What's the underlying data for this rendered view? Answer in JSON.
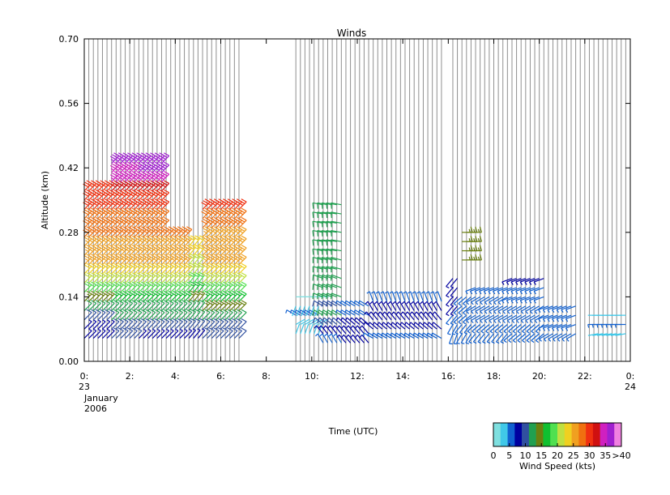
{
  "chart_data": {
    "type": "wind_barb_profile",
    "title": "Winds",
    "xlabel": "Time (UTC)",
    "ylabel": "Altitude (km)",
    "x_unit": "hour UTC",
    "xlim": [
      0,
      24
    ],
    "ylim": [
      0,
      0.7
    ],
    "y_ticks": [
      "0.00",
      "0.14",
      "0.28",
      "0.42",
      "0.56",
      "0.70"
    ],
    "x_ticks": [
      {
        "h": 0,
        "label": "0:",
        "sub": "23"
      },
      {
        "h": 2,
        "label": "2:",
        "sub": ""
      },
      {
        "h": 4,
        "label": "4:",
        "sub": ""
      },
      {
        "h": 6,
        "label": "6:",
        "sub": ""
      },
      {
        "h": 8,
        "label": "8:",
        "sub": ""
      },
      {
        "h": 10,
        "label": "10:",
        "sub": ""
      },
      {
        "h": 12,
        "label": "12:",
        "sub": ""
      },
      {
        "h": 14,
        "label": "14:",
        "sub": ""
      },
      {
        "h": 16,
        "label": "16:",
        "sub": ""
      },
      {
        "h": 18,
        "label": "18:",
        "sub": ""
      },
      {
        "h": 20,
        "label": "20:",
        "sub": ""
      },
      {
        "h": 22,
        "label": "22:",
        "sub": ""
      },
      {
        "h": 24,
        "label": "0:",
        "sub": "24"
      }
    ],
    "date_label_1": "January",
    "date_label_2": "2006",
    "grid": "vertical lines at each profile time",
    "profile_times": [
      0.0,
      0.2,
      0.4,
      0.6,
      0.8,
      1.0,
      1.2,
      1.4,
      1.6,
      1.8,
      2.0,
      2.2,
      2.4,
      2.6,
      2.8,
      3.0,
      3.2,
      3.4,
      3.6,
      3.8,
      4.0,
      4.2,
      4.4,
      4.6,
      4.8,
      5.0,
      5.2,
      5.4,
      5.6,
      5.8,
      6.0,
      6.2,
      6.4,
      6.6,
      6.8,
      9.3,
      9.5,
      9.7,
      9.9,
      10.1,
      10.3,
      10.5,
      10.7,
      10.9,
      11.1,
      11.3,
      11.5,
      11.7,
      11.9,
      12.1,
      12.3,
      12.5,
      12.7,
      12.9,
      13.1,
      13.3,
      13.5,
      13.7,
      13.9,
      14.1,
      14.3,
      14.5,
      14.7,
      14.9,
      15.1,
      15.3,
      15.5,
      15.7,
      16.2,
      16.4,
      16.6,
      16.8,
      17.0,
      17.2,
      17.4,
      17.6,
      17.8,
      18.0,
      18.2,
      18.4,
      18.6,
      18.8,
      19.0,
      19.2,
      19.4,
      19.6,
      19.8,
      20.0,
      20.2,
      20.4,
      20.6,
      20.8,
      21.0,
      21.2,
      21.4,
      21.6,
      21.8,
      22.0,
      22.2,
      22.4,
      22.6,
      22.8,
      23.0,
      23.2,
      23.4,
      23.6,
      23.8
    ],
    "profiles": [
      {
        "t0": 0.0,
        "t1": 1.0,
        "dt": 0.2,
        "levels": [
          [
            0.05,
            8,
            45
          ],
          [
            0.07,
            8,
            45
          ],
          [
            0.09,
            10,
            45
          ],
          [
            0.11,
            12,
            45
          ],
          [
            0.13,
            16,
            45
          ],
          [
            0.15,
            20,
            45
          ],
          [
            0.17,
            22,
            45
          ],
          [
            0.19,
            24,
            45
          ],
          [
            0.21,
            26,
            45
          ],
          [
            0.23,
            26,
            45
          ],
          [
            0.25,
            28,
            45
          ],
          [
            0.27,
            30,
            45
          ],
          [
            0.29,
            30,
            45
          ],
          [
            0.31,
            30,
            45
          ],
          [
            0.33,
            32,
            45
          ],
          [
            0.35,
            32,
            45
          ],
          [
            0.37,
            32,
            45
          ]
        ]
      },
      {
        "t0": 1.2,
        "t1": 2.2,
        "dt": 0.2,
        "levels": [
          [
            0.05,
            10,
            45
          ],
          [
            0.07,
            10,
            45
          ],
          [
            0.09,
            12,
            45
          ],
          [
            0.11,
            14,
            45
          ],
          [
            0.13,
            18,
            45
          ],
          [
            0.15,
            20,
            45
          ],
          [
            0.17,
            22,
            45
          ],
          [
            0.19,
            24,
            45
          ],
          [
            0.21,
            26,
            45
          ],
          [
            0.23,
            26,
            45
          ],
          [
            0.25,
            28,
            45
          ],
          [
            0.27,
            30,
            45
          ],
          [
            0.29,
            30,
            45
          ],
          [
            0.31,
            30,
            45
          ],
          [
            0.33,
            32,
            45
          ],
          [
            0.35,
            32,
            45
          ],
          [
            0.37,
            34,
            45
          ],
          [
            0.39,
            36,
            45
          ],
          [
            0.41,
            36,
            45
          ],
          [
            0.43,
            38,
            45
          ]
        ]
      },
      {
        "t0": 2.4,
        "t1": 3.4,
        "dt": 0.2,
        "levels": [
          [
            0.05,
            8,
            45
          ],
          [
            0.07,
            10,
            45
          ],
          [
            0.09,
            12,
            45
          ],
          [
            0.11,
            14,
            45
          ],
          [
            0.13,
            18,
            45
          ],
          [
            0.15,
            20,
            45
          ],
          [
            0.17,
            22,
            45
          ],
          [
            0.19,
            24,
            45
          ],
          [
            0.21,
            26,
            45
          ],
          [
            0.23,
            26,
            45
          ],
          [
            0.25,
            28,
            45
          ],
          [
            0.27,
            30,
            45
          ],
          [
            0.29,
            30,
            45
          ],
          [
            0.31,
            30,
            45
          ],
          [
            0.33,
            32,
            45
          ],
          [
            0.35,
            32,
            45
          ],
          [
            0.37,
            34,
            45
          ],
          [
            0.39,
            36,
            45
          ],
          [
            0.41,
            38,
            45
          ],
          [
            0.43,
            38,
            45
          ]
        ]
      },
      {
        "t0": 3.6,
        "t1": 4.4,
        "dt": 0.2,
        "levels": [
          [
            0.05,
            8,
            45
          ],
          [
            0.07,
            10,
            45
          ],
          [
            0.09,
            12,
            45
          ],
          [
            0.11,
            14,
            45
          ],
          [
            0.13,
            18,
            45
          ],
          [
            0.15,
            20,
            45
          ],
          [
            0.17,
            22,
            45
          ],
          [
            0.19,
            24,
            45
          ],
          [
            0.21,
            26,
            45
          ],
          [
            0.23,
            26,
            45
          ],
          [
            0.25,
            28,
            45
          ],
          [
            0.27,
            30,
            45
          ]
        ]
      },
      {
        "t0": 4.6,
        "t1": 5.0,
        "dt": 0.2,
        "levels": [
          [
            0.05,
            8,
            40
          ],
          [
            0.07,
            10,
            40
          ],
          [
            0.09,
            12,
            40
          ],
          [
            0.11,
            14,
            40
          ],
          [
            0.13,
            16,
            40
          ],
          [
            0.15,
            18,
            40
          ],
          [
            0.17,
            20,
            40
          ],
          [
            0.19,
            22,
            40
          ],
          [
            0.21,
            22,
            40
          ],
          [
            0.23,
            24,
            40
          ],
          [
            0.25,
            24,
            40
          ]
        ]
      },
      {
        "t0": 5.2,
        "t1": 6.8,
        "dt": 0.2,
        "levels": [
          [
            0.05,
            10,
            45
          ],
          [
            0.07,
            10,
            45
          ],
          [
            0.09,
            14,
            45
          ],
          [
            0.11,
            16,
            45
          ],
          [
            0.13,
            18,
            45
          ],
          [
            0.15,
            20,
            45
          ],
          [
            0.17,
            22,
            45
          ],
          [
            0.19,
            24,
            45
          ],
          [
            0.21,
            26,
            45
          ],
          [
            0.23,
            26,
            45
          ],
          [
            0.25,
            28,
            45
          ],
          [
            0.27,
            28,
            45
          ],
          [
            0.29,
            30,
            45
          ],
          [
            0.31,
            30,
            45
          ],
          [
            0.33,
            32,
            45
          ]
        ]
      },
      {
        "t0": 9.3,
        "t1": 10.3,
        "dt": 0.2,
        "levels": [
          [
            0.06,
            3,
            20
          ],
          [
            0.08,
            4,
            60
          ],
          [
            0.1,
            5,
            300
          ],
          [
            0.12,
            3,
            200
          ],
          [
            0.14,
            2,
            90
          ]
        ]
      },
      {
        "t0": 10.5,
        "t1": 11.3,
        "dt": 0.2,
        "levels": [
          [
            0.04,
            6,
            330
          ],
          [
            0.06,
            8,
            320
          ],
          [
            0.08,
            10,
            310
          ],
          [
            0.1,
            12,
            300
          ],
          [
            0.12,
            10,
            300
          ],
          [
            0.14,
            12,
            290
          ],
          [
            0.16,
            14,
            290
          ],
          [
            0.18,
            14,
            290
          ],
          [
            0.2,
            14,
            285
          ],
          [
            0.22,
            14,
            285
          ],
          [
            0.24,
            14,
            280
          ],
          [
            0.26,
            14,
            280
          ],
          [
            0.28,
            14,
            280
          ],
          [
            0.3,
            14,
            280
          ],
          [
            0.32,
            14,
            280
          ],
          [
            0.34,
            14,
            280
          ]
        ]
      },
      {
        "t0": 11.5,
        "t1": 12.5,
        "dt": 0.2,
        "levels": [
          [
            0.04,
            8,
            320
          ],
          [
            0.06,
            9,
            320
          ],
          [
            0.08,
            8,
            310
          ],
          [
            0.1,
            7,
            300
          ],
          [
            0.12,
            6,
            300
          ]
        ]
      },
      {
        "t0": 12.7,
        "t1": 15.7,
        "dt": 0.2,
        "levels": [
          [
            0.05,
            7,
            300
          ],
          [
            0.07,
            8,
            310
          ],
          [
            0.09,
            8,
            320
          ],
          [
            0.11,
            8,
            330
          ],
          [
            0.13,
            7,
            340
          ]
        ]
      },
      {
        "t0": 16.2,
        "t1": 16.4,
        "dt": 0.2,
        "levels": [
          [
            0.06,
            6,
            200
          ],
          [
            0.08,
            7,
            210
          ],
          [
            0.1,
            7,
            220
          ],
          [
            0.12,
            8,
            220
          ],
          [
            0.14,
            8,
            220
          ],
          [
            0.16,
            8,
            220
          ],
          [
            0.18,
            8,
            220
          ]
        ]
      },
      {
        "t0": 16.6,
        "t1": 17.0,
        "dt": 0.2,
        "levels": [
          [
            0.06,
            6,
            210
          ],
          [
            0.08,
            6,
            220
          ],
          [
            0.1,
            7,
            230
          ],
          [
            0.12,
            7,
            230
          ],
          [
            0.14,
            6,
            230
          ],
          [
            0.22,
            15,
            90
          ],
          [
            0.24,
            15,
            90
          ],
          [
            0.26,
            15,
            90
          ],
          [
            0.28,
            16,
            90
          ]
        ]
      },
      {
        "t0": 17.2,
        "t1": 18.6,
        "dt": 0.2,
        "levels": [
          [
            0.06,
            5,
            220
          ],
          [
            0.08,
            6,
            230
          ],
          [
            0.1,
            6,
            240
          ],
          [
            0.12,
            6,
            240
          ],
          [
            0.14,
            7,
            240
          ],
          [
            0.16,
            7,
            250
          ]
        ]
      },
      {
        "t0": 18.8,
        "t1": 20.2,
        "dt": 0.2,
        "levels": [
          [
            0.06,
            5,
            230
          ],
          [
            0.08,
            6,
            230
          ],
          [
            0.1,
            6,
            240
          ],
          [
            0.12,
            6,
            240
          ],
          [
            0.14,
            7,
            250
          ],
          [
            0.16,
            7,
            250
          ],
          [
            0.18,
            8,
            250
          ]
        ]
      },
      {
        "t0": 20.4,
        "t1": 21.6,
        "dt": 0.2,
        "levels": [
          [
            0.06,
            5,
            240
          ],
          [
            0.08,
            5,
            250
          ],
          [
            0.1,
            6,
            250
          ],
          [
            0.12,
            5,
            250
          ]
        ]
      },
      {
        "t0": 22.6,
        "t1": 23.8,
        "dt": 0.2,
        "levels": [
          [
            0.06,
            4,
            260
          ],
          [
            0.08,
            5,
            270
          ],
          [
            0.1,
            3,
            270
          ]
        ]
      }
    ],
    "colorbar": {
      "title": "Wind Speed (kts)",
      "labels": [
        "0",
        "5",
        "10",
        "15",
        "20",
        "25",
        "30",
        "35",
        ">40"
      ],
      "colors": [
        "#7fe0e0",
        "#40c8e8",
        "#1060d0",
        "#0000a0",
        "#3050a0",
        "#20a050",
        "#6a8010",
        "#10c030",
        "#50e050",
        "#c0e040",
        "#f0d020",
        "#f0a020",
        "#f07010",
        "#f03010",
        "#d01010",
        "#d020c0",
        "#a020d0",
        "#f080e0"
      ]
    }
  }
}
